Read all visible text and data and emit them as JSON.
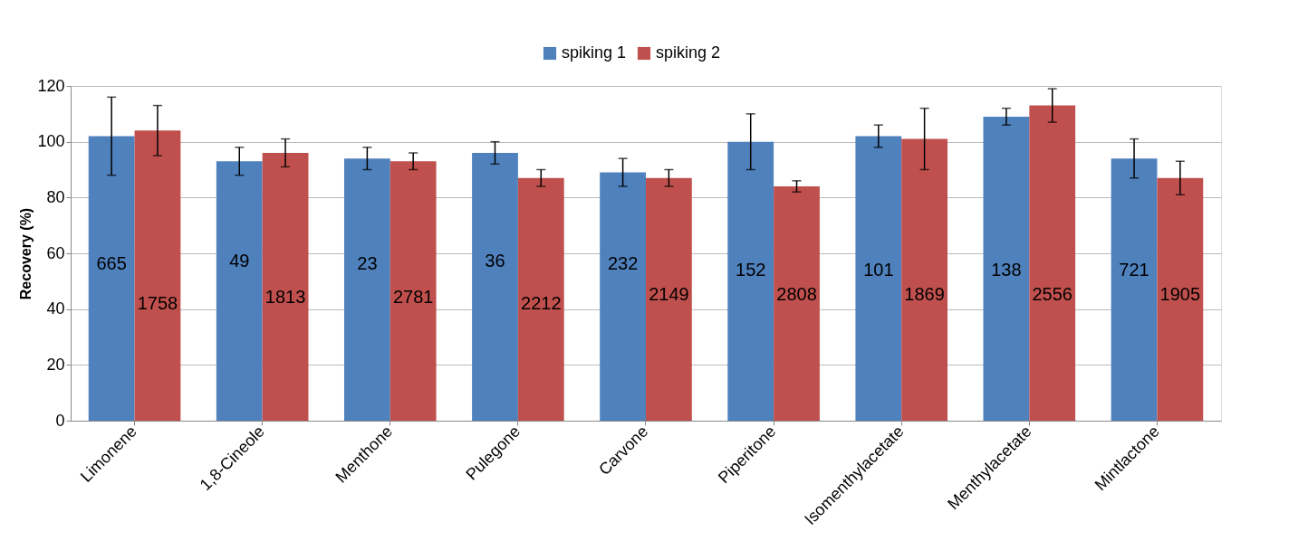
{
  "chart_data": {
    "type": "bar",
    "ylabel": "Recovery (%)",
    "categories": [
      "Limonene",
      "1,8-Cineole",
      "Menthone",
      "Pulegone",
      "Carvone",
      "Piperitone",
      "Isomenthylacetate",
      "Menthylacetate",
      "Mintlactone"
    ],
    "series": [
      {
        "name": "spiking 1",
        "color": "#4f81bd",
        "values": [
          102,
          93,
          94,
          96,
          89,
          100,
          102,
          109,
          94
        ],
        "errors": [
          14,
          5,
          4,
          4,
          5,
          10,
          4,
          3,
          7
        ]
      },
      {
        "name": "spiking 2",
        "color": "#c0504d",
        "values": [
          104,
          96,
          93,
          87,
          87,
          84,
          101,
          113,
          87
        ],
        "errors": [
          9,
          5,
          3,
          3,
          3,
          2,
          11,
          6,
          6
        ]
      }
    ],
    "annotations": [
      {
        "text": "665",
        "x": "Limonene",
        "y": 56
      },
      {
        "text": "1758",
        "x": "Limonene",
        "y": 42
      },
      {
        "text": "49",
        "x": "1,8-Cineole",
        "y": 57
      },
      {
        "text": "1813",
        "x": "1,8-Cineole",
        "y": 44
      },
      {
        "text": "23",
        "x": "Menthone",
        "y": 56
      },
      {
        "text": "2781",
        "x": "Menthone",
        "y": 44
      },
      {
        "text": "36",
        "x": "Pulegone",
        "y": 57
      },
      {
        "text": "2212",
        "x": "Pulegone",
        "y": 42
      },
      {
        "text": "232",
        "x": "Carvone",
        "y": 56
      },
      {
        "text": "2149",
        "x": "Carvone",
        "y": 45
      },
      {
        "text": "152",
        "x": "Piperitone",
        "y": 54
      },
      {
        "text": "2808",
        "x": "Piperitone",
        "y": 45
      },
      {
        "text": "101",
        "x": "Isomenthylacetate",
        "y": 54
      },
      {
        "text": "1869",
        "x": "Isomenthylacetate",
        "y": 45
      },
      {
        "text": "138",
        "x": "Menthylacetate",
        "y": 54
      },
      {
        "text": "2556",
        "x": "Menthylacetate",
        "y": 45
      },
      {
        "text": "721",
        "x": "Mintlactone",
        "y": 54
      },
      {
        "text": "1905",
        "x": "Mintlactone",
        "y": 45
      }
    ],
    "ylim": [
      0,
      120
    ],
    "yticks": [
      0,
      20,
      40,
      60,
      80,
      100,
      120
    ],
    "grid": "y",
    "legend": "top"
  }
}
